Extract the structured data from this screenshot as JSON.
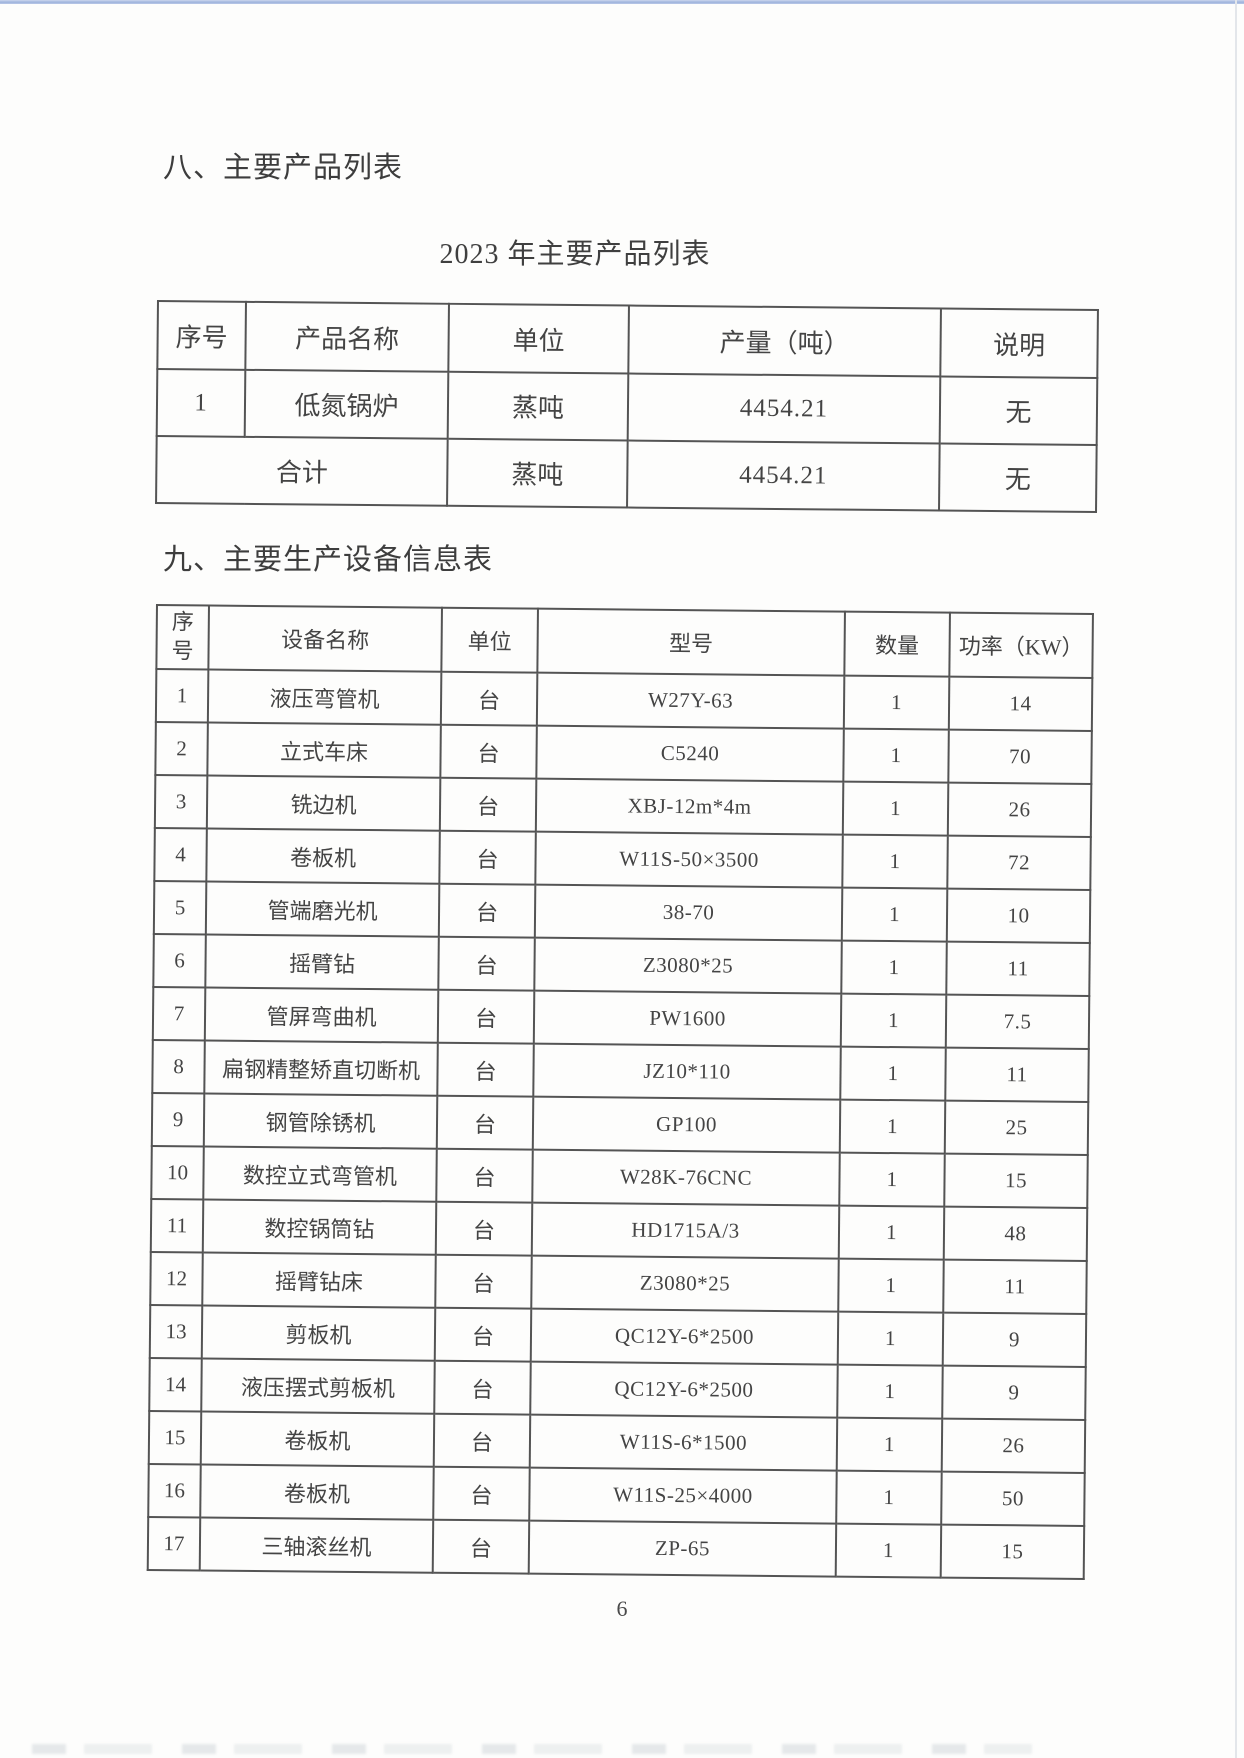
{
  "page": {
    "section8_heading": "八、主要产品列表",
    "table1_title": "2023 年主要产品列表",
    "section9_heading": "九、主要生产设备信息表",
    "page_number": "6"
  },
  "colors": {
    "divider_blue": "#9fb4dc",
    "table_border": "#545454",
    "text": "#424242",
    "background": "#fdfdfc"
  },
  "products_table": {
    "headers": [
      "序号",
      "产品名称",
      "单位",
      "产量（吨）",
      "说明"
    ],
    "rows": [
      [
        "1",
        "低氮锅炉",
        "蒸吨",
        "4454.21",
        "无"
      ]
    ],
    "total_row": {
      "label": "合计",
      "unit": "蒸吨",
      "amount": "4454.21",
      "note": "无"
    }
  },
  "equipment_table": {
    "headers": [
      "序号",
      "设备名称",
      "单位",
      "型号",
      "数量",
      "功率（KW）"
    ],
    "rows": [
      [
        "1",
        "液压弯管机",
        "台",
        "W27Y-63",
        "1",
        "14"
      ],
      [
        "2",
        "立式车床",
        "台",
        "C5240",
        "1",
        "70"
      ],
      [
        "3",
        "铣边机",
        "台",
        "XBJ-12m*4m",
        "1",
        "26"
      ],
      [
        "4",
        "卷板机",
        "台",
        "W11S-50×3500",
        "1",
        "72"
      ],
      [
        "5",
        "管端磨光机",
        "台",
        "38-70",
        "1",
        "10"
      ],
      [
        "6",
        "摇臂钻",
        "台",
        "Z3080*25",
        "1",
        "11"
      ],
      [
        "7",
        "管屏弯曲机",
        "台",
        "PW1600",
        "1",
        "7.5"
      ],
      [
        "8",
        "扁钢精整矫直切断机",
        "台",
        "JZ10*110",
        "1",
        "11"
      ],
      [
        "9",
        "钢管除锈机",
        "台",
        "GP100",
        "1",
        "25"
      ],
      [
        "10",
        "数控立式弯管机",
        "台",
        "W28K-76CNC",
        "1",
        "15"
      ],
      [
        "11",
        "数控锅筒钻",
        "台",
        "HD1715A/3",
        "1",
        "48"
      ],
      [
        "12",
        "摇臂钻床",
        "台",
        "Z3080*25",
        "1",
        "11"
      ],
      [
        "13",
        "剪板机",
        "台",
        "QC12Y-6*2500",
        "1",
        "9"
      ],
      [
        "14",
        "液压摆式剪板机",
        "台",
        "QC12Y-6*2500",
        "1",
        "9"
      ],
      [
        "15",
        "卷板机",
        "台",
        "W11S-6*1500",
        "1",
        "26"
      ],
      [
        "16",
        "卷板机",
        "台",
        "W11S-25×4000",
        "1",
        "50"
      ],
      [
        "17",
        "三轴滚丝机",
        "台",
        "ZP-65",
        "1",
        "15"
      ]
    ]
  }
}
